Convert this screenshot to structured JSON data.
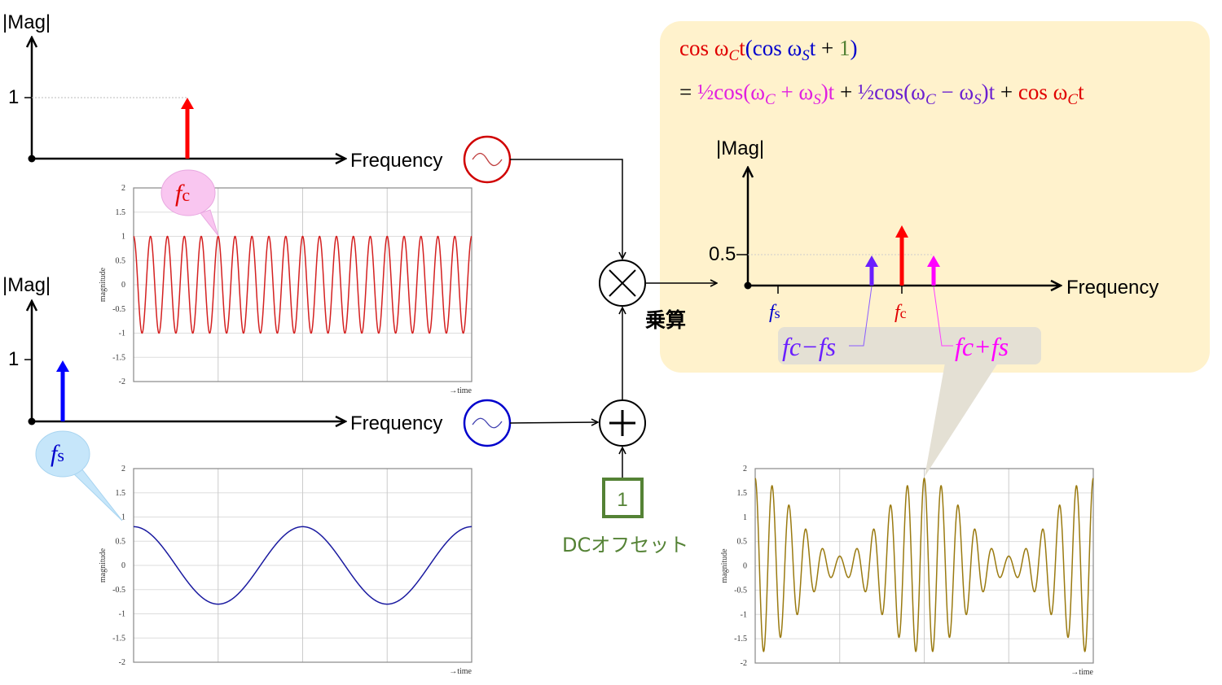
{
  "labels": {
    "mag": "|Mag|",
    "frequency": "Frequency",
    "one": "1",
    "half": "0.5",
    "multiply": "乗算",
    "dc_offset": "DCオフセット",
    "dc_value": "1",
    "fc": "f",
    "fc_sub": "c",
    "fs": "f",
    "fs_sub": "s",
    "fc_minus_fs": "fc−fs",
    "fc_plus_fs": "fc+fs",
    "time": "→time",
    "magnitude": "magnitude"
  },
  "formula": {
    "line1": [
      {
        "t": "cos ω",
        "c": "#e00000"
      },
      {
        "t": "C",
        "c": "#e00000",
        "sub": true
      },
      {
        "t": "t",
        "c": "#e00000"
      },
      {
        "t": "(cos ω",
        "c": "#0000cc"
      },
      {
        "t": "S",
        "c": "#0000cc",
        "sub": true
      },
      {
        "t": "t",
        "c": "#0000cc"
      },
      {
        "t": " + ",
        "c": "#000"
      },
      {
        "t": "1",
        "c": "#548235"
      },
      {
        "t": ")",
        "c": "#0000cc"
      }
    ],
    "line2": [
      {
        "t": "= ",
        "c": "#000"
      },
      {
        "t": "½cos(ω",
        "c": "#e020e0"
      },
      {
        "t": "C",
        "c": "#e020e0",
        "sub": true
      },
      {
        "t": " + ω",
        "c": "#e020e0"
      },
      {
        "t": "S",
        "c": "#e020e0",
        "sub": true
      },
      {
        "t": ")t",
        "c": "#e020e0"
      },
      {
        "t": " + ",
        "c": "#000"
      },
      {
        "t": "½cos(ω",
        "c": "#6a1fd0"
      },
      {
        "t": "C",
        "c": "#6a1fd0",
        "sub": true
      },
      {
        "t": " − ω",
        "c": "#6a1fd0"
      },
      {
        "t": "S",
        "c": "#6a1fd0",
        "sub": true
      },
      {
        "t": ")t",
        "c": "#6a1fd0"
      },
      {
        "t": " + ",
        "c": "#000"
      },
      {
        "t": "cos ω",
        "c": "#e00000"
      },
      {
        "t": "C",
        "c": "#e00000",
        "sub": true
      },
      {
        "t": "t",
        "c": "#e00000"
      }
    ]
  },
  "colors": {
    "carrier": "#ff0000",
    "signal": "#0000ff",
    "lower_sideband": "#6a1fff",
    "upper_sideband": "#ff00ff",
    "dc": "#548235",
    "output_wave": "#9a7a10",
    "panel": "#fff2cc",
    "callout": "#e8e4d8"
  },
  "icons": {
    "oscillator": "sine-wave-source-icon",
    "multiplier": "multiply-circle-icon",
    "adder": "plus-circle-icon"
  },
  "chart_data": [
    {
      "type": "line",
      "name": "carrier",
      "ylabel": "magnitude",
      "xlabel": "→time",
      "ylim": [
        -2,
        2
      ],
      "yticks": [
        "2",
        "1.5",
        "1",
        "0.5",
        "0",
        "-0.5",
        "-1",
        "-1.5",
        "-2"
      ],
      "amplitude": 1,
      "cycles": 20,
      "grid": true
    },
    {
      "type": "line",
      "name": "signal",
      "ylabel": "magnitude",
      "xlabel": "→time",
      "ylim": [
        -2,
        2
      ],
      "yticks": [
        "2",
        "1.5",
        "1",
        "0.5",
        "0",
        "-0.5",
        "-1",
        "-1.5",
        "-2"
      ],
      "amplitude": 0.8,
      "cycles": 2,
      "grid": true
    },
    {
      "type": "line",
      "name": "output",
      "ylabel": "magnitude",
      "xlabel": "→time",
      "ylim": [
        -2,
        2
      ],
      "yticks": [
        "2",
        "1.5",
        "1",
        "0.5",
        "0",
        "-0.5",
        "-1",
        "-1.5",
        "-2"
      ],
      "carrier_cycles": 20,
      "signal_cycles": 2,
      "signal_amplitude": 0.8,
      "dc": 1,
      "grid": true
    },
    {
      "type": "bar",
      "name": "carrier-spectrum",
      "ylabel": "|Mag|",
      "xlabel": "Frequency",
      "bars": [
        {
          "label": "fc",
          "value": 1
        }
      ]
    },
    {
      "type": "bar",
      "name": "signal-spectrum",
      "ylabel": "|Mag|",
      "xlabel": "Frequency",
      "bars": [
        {
          "label": "fs",
          "value": 1
        }
      ]
    },
    {
      "type": "bar",
      "name": "output-spectrum",
      "ylabel": "|Mag|",
      "xlabel": "Frequency",
      "bars": [
        {
          "label": "fc−fs",
          "value": 0.5
        },
        {
          "label": "fc",
          "value": 1
        },
        {
          "label": "fc+fs",
          "value": 0.5
        }
      ]
    }
  ]
}
